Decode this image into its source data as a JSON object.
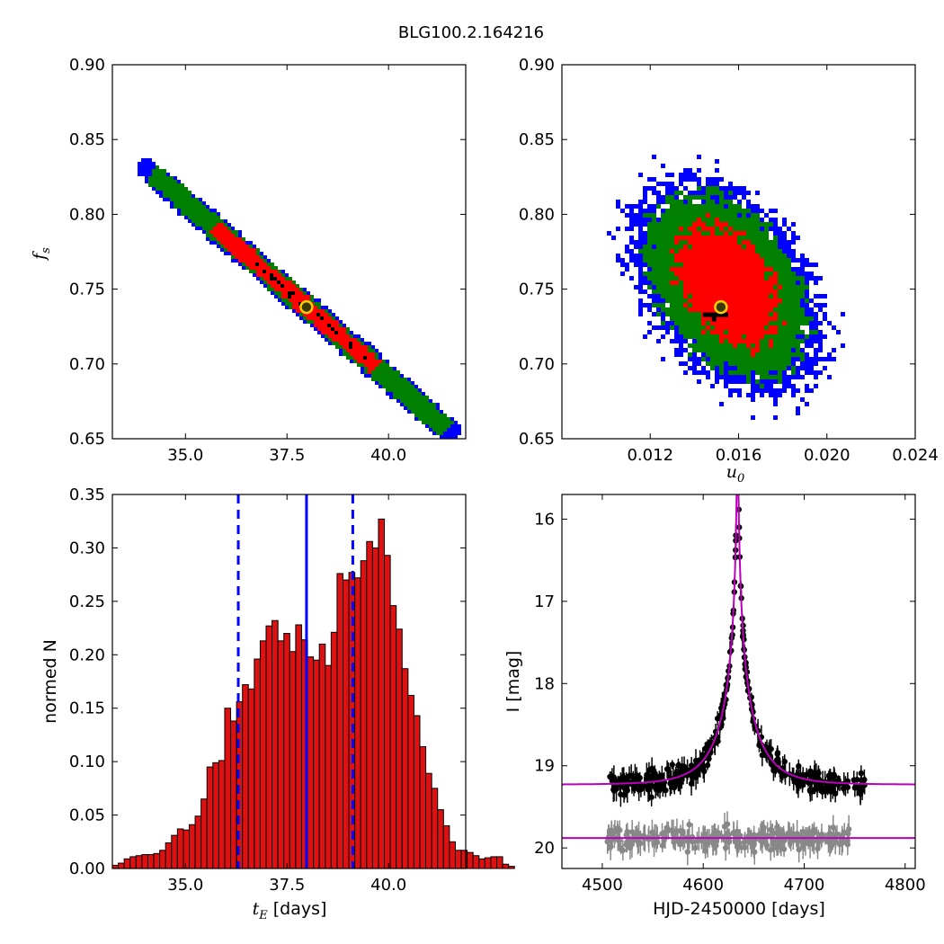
{
  "title": "BLG100.2.164216",
  "colors": {
    "sigma1": "#ff0000",
    "sigma2": "#008000",
    "sigma3": "#0000ff",
    "best_pixels": "#000000",
    "best_marker_fill": "#3a3a00",
    "best_marker_edge": "#ffcc00",
    "hist_bar": "#dd1111",
    "hist_lines": "#0000ff",
    "model": "#bb00bb",
    "data_main": "#000000",
    "data_other": "#888888"
  },
  "chart_data": [
    {
      "id": "tE_fs",
      "type": "heatmap",
      "xlabel": "",
      "ylabel": "f",
      "ylabel_sub": "s",
      "xlim": [
        33.2,
        41.9
      ],
      "ylim": [
        0.65,
        0.9
      ],
      "xticks": [
        35.0,
        37.5,
        40.0
      ],
      "xtick_labels": [
        "35.0",
        "37.5",
        "40.0"
      ],
      "yticks": [
        0.65,
        0.7,
        0.75,
        0.8,
        0.85,
        0.9
      ],
      "ytick_labels": [
        "0.65",
        "0.70",
        "0.75",
        "0.80",
        "0.85",
        "0.90"
      ],
      "best_fit": {
        "x": 37.98,
        "y": 0.738
      },
      "contours": {
        "sigma1": {
          "t_range": [
            -0.55,
            0.42
          ],
          "width": 0.62
        },
        "sigma2": {
          "t_range": [
            -0.93,
            0.85
          ],
          "width": 0.82
        },
        "sigma3": {
          "t_range": [
            -1.0,
            0.9
          ],
          "width": 0.98
        }
      }
    },
    {
      "id": "u0_fs",
      "type": "heatmap",
      "xlabel": "u",
      "xlabel_sub": "0",
      "ylabel": "",
      "xlim": [
        0.008,
        0.024
      ],
      "ylim": [
        0.65,
        0.9
      ],
      "xticks": [
        0.012,
        0.016,
        0.02,
        0.024
      ],
      "xtick_labels": [
        "0.012",
        "0.016",
        "0.020",
        "0.024"
      ],
      "yticks": [
        0.65,
        0.7,
        0.75,
        0.8,
        0.85,
        0.9
      ],
      "ytick_labels": [
        "0.65",
        "0.70",
        "0.75",
        "0.80",
        "0.85",
        "0.90"
      ],
      "best_fit": {
        "x": 0.0152,
        "y": 0.738
      },
      "center": {
        "x": 0.0155,
        "y": 0.752
      }
    },
    {
      "id": "tE_hist",
      "type": "bar",
      "xlabel": "t",
      "xlabel_sub": "E",
      "xlabel_unit": "[days]",
      "ylabel": "normed N",
      "xlim": [
        33.2,
        41.9
      ],
      "ylim": [
        0.0,
        0.35
      ],
      "xticks": [
        35.0,
        37.5,
        40.0
      ],
      "xtick_labels": [
        "35.0",
        "37.5",
        "40.0"
      ],
      "yticks": [
        0.0,
        0.05,
        0.1,
        0.15,
        0.2,
        0.25,
        0.3,
        0.35
      ],
      "ytick_labels": [
        "0.00",
        "0.05",
        "0.10",
        "0.15",
        "0.20",
        "0.25",
        "0.30",
        "0.35"
      ],
      "bin_start": 33.2,
      "bin_width": 0.1456,
      "values": [
        0.003,
        0.005,
        0.009,
        0.011,
        0.012,
        0.013,
        0.013,
        0.014,
        0.017,
        0.024,
        0.031,
        0.037,
        0.036,
        0.041,
        0.049,
        0.065,
        0.095,
        0.099,
        0.101,
        0.15,
        0.138,
        0.156,
        0.172,
        0.168,
        0.196,
        0.213,
        0.227,
        0.232,
        0.213,
        0.22,
        0.203,
        0.228,
        0.214,
        0.198,
        0.195,
        0.21,
        0.19,
        0.221,
        0.276,
        0.27,
        0.277,
        0.272,
        0.288,
        0.306,
        0.3,
        0.327,
        0.293,
        0.246,
        0.224,
        0.187,
        0.162,
        0.143,
        0.114,
        0.089,
        0.075,
        0.055,
        0.04,
        0.025,
        0.017,
        0.017,
        0.015,
        0.012,
        0.009,
        0.01,
        0.011,
        0.011,
        0.004,
        0.002
      ],
      "lines": {
        "median": 37.98,
        "lower": 36.3,
        "upper": 39.12
      }
    },
    {
      "id": "lightcurve",
      "type": "scatter",
      "xlabel": "HJD-2450000 [days]",
      "ylabel": "I [mag]",
      "xlim": [
        4460,
        4810
      ],
      "ylim": [
        20.25,
        15.7
      ],
      "xticks": [
        4500,
        4600,
        4700,
        4800
      ],
      "xtick_labels": [
        "4500",
        "4600",
        "4700",
        "4800"
      ],
      "yticks": [
        16,
        17,
        18,
        19,
        20
      ],
      "ytick_labels": [
        "16",
        "17",
        "18",
        "19",
        "20"
      ],
      "model": {
        "t0": 4634,
        "baseline": 19.23,
        "peak": 15.7,
        "tE": 37.98,
        "u0": 0.0152,
        "fs": 0.738
      },
      "baseline_other": 19.88,
      "data_range": [
        4505,
        4760
      ],
      "data_range_other": [
        4505,
        4745
      ]
    }
  ]
}
